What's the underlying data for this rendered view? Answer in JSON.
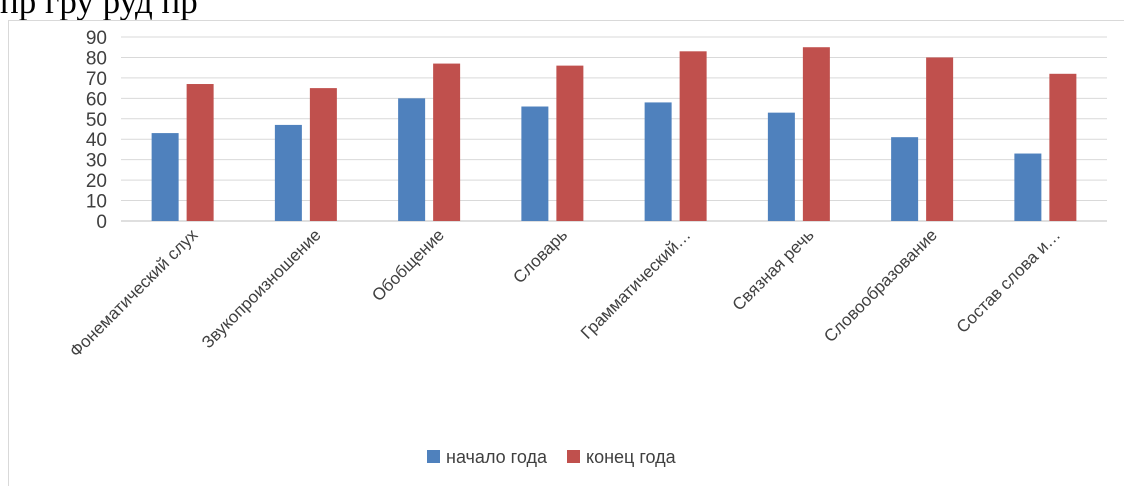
{
  "top_text": "пр   гру                    руд        пр",
  "chart_data": {
    "type": "bar",
    "title": "",
    "xlabel": "",
    "ylabel": "",
    "ylim": [
      0,
      90
    ],
    "yticks": [
      0,
      10,
      20,
      30,
      40,
      50,
      60,
      70,
      80,
      90
    ],
    "grid": true,
    "legend_position": "bottom",
    "categories": [
      "Фонематический слух",
      "Звукопроизношение",
      "Обобщение",
      "Словарь",
      "Грамматический…",
      "Связная речь",
      "Словообразование",
      "Состав слова и…"
    ],
    "series": [
      {
        "name": "начало года",
        "color": "#4f81bd",
        "values": [
          43,
          47,
          60,
          56,
          58,
          53,
          41,
          33
        ]
      },
      {
        "name": "конец года",
        "color": "#c0504d",
        "values": [
          67,
          65,
          77,
          76,
          83,
          85,
          80,
          72
        ]
      }
    ]
  }
}
